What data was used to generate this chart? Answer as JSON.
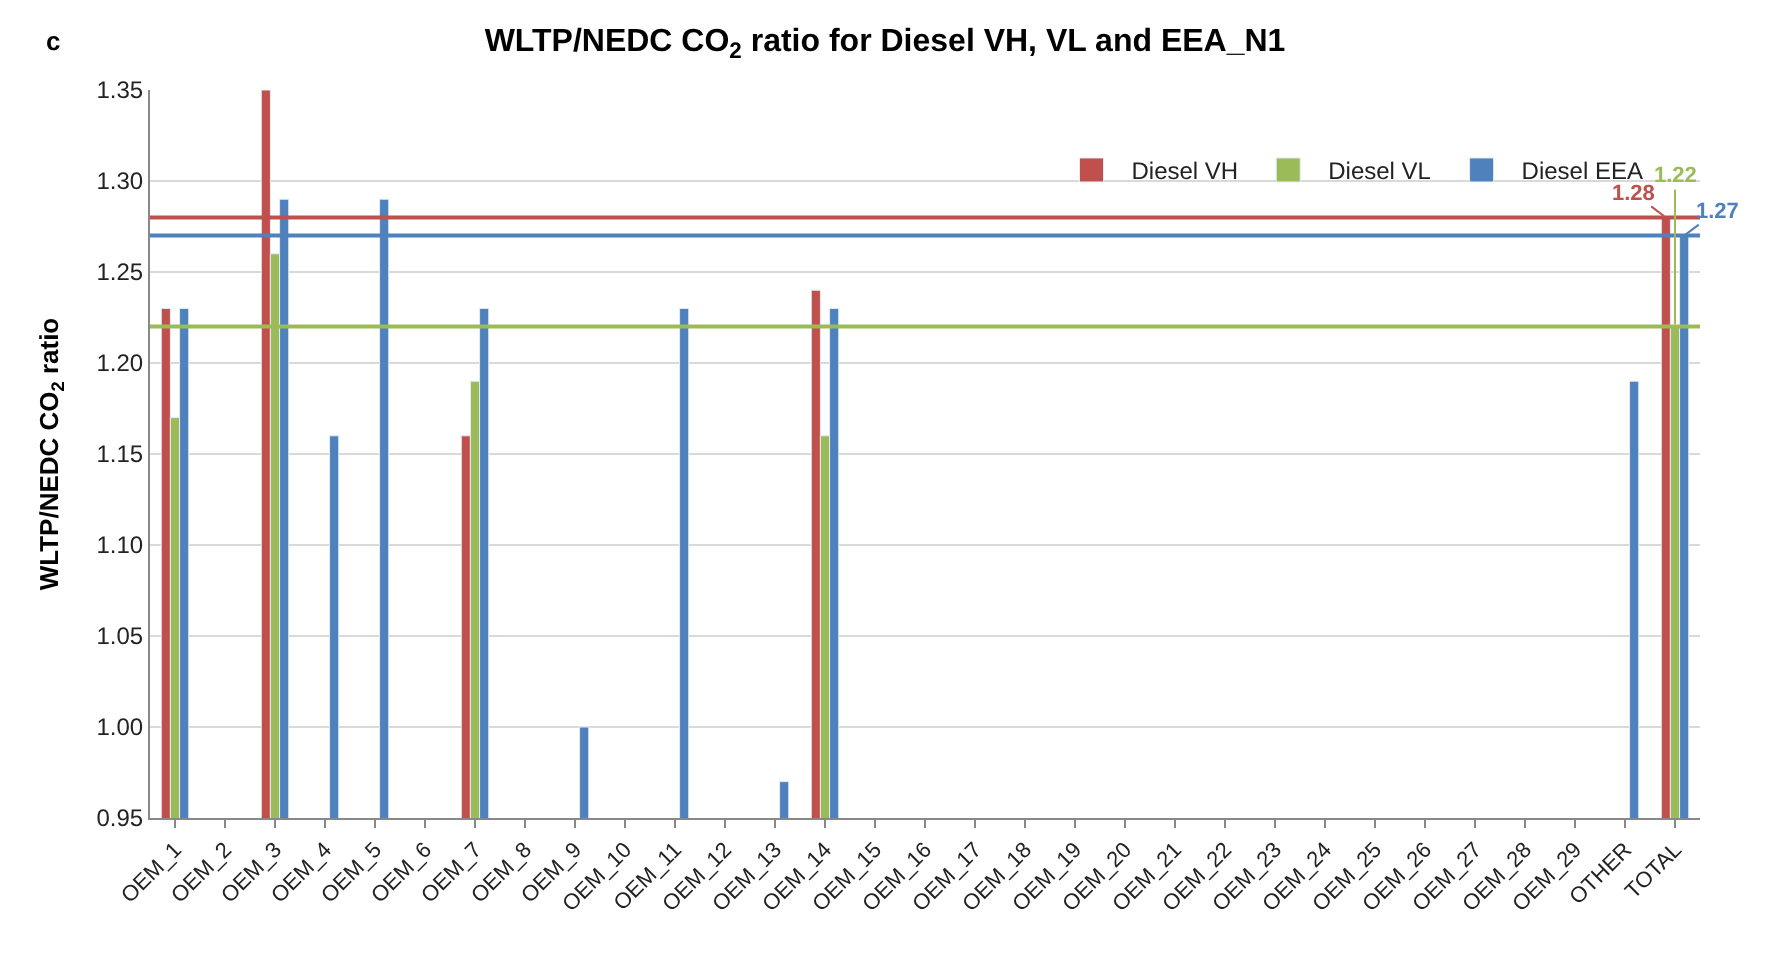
{
  "chart_data": {
    "type": "bar",
    "title": "WLTP/NEDC CO$_{2}$ ratio for Diesel VH, VL and EEA_N1",
    "ylabel": "WLTP/NEDC CO$_{2}$ ratio",
    "annotations": [
      "c"
    ],
    "categories": [
      "OEM_1",
      "OEM_2",
      "OEM_3",
      "OEM_4",
      "OEM_5",
      "OEM_6",
      "OEM_7",
      "OEM_8",
      "OEM_9",
      "OEM_10",
      "OEM_11",
      "OEM_12",
      "OEM_13",
      "OEM_14",
      "OEM_15",
      "OEM_16",
      "OEM_17",
      "OEM_18",
      "OEM_19",
      "OEM_20",
      "OEM_21",
      "OEM_22",
      "OEM_23",
      "OEM_24",
      "OEM_25",
      "OEM_26",
      "OEM_27",
      "OEM_28",
      "OEM_29",
      "OTHER",
      "TOTAL"
    ],
    "series": [
      {
        "name": "Diesel VH",
        "color": "#c0504d",
        "values": [
          1.23,
          null,
          1.35,
          null,
          null,
          null,
          1.16,
          null,
          null,
          null,
          null,
          null,
          null,
          1.24,
          null,
          null,
          null,
          null,
          null,
          null,
          null,
          null,
          null,
          null,
          null,
          null,
          null,
          null,
          null,
          null,
          1.28
        ],
        "value_labels": [
          null,
          null,
          null,
          null,
          null,
          null,
          null,
          null,
          null,
          null,
          null,
          null,
          null,
          null,
          null,
          null,
          null,
          null,
          null,
          null,
          null,
          null,
          null,
          null,
          null,
          null,
          null,
          null,
          null,
          null,
          "1.28"
        ]
      },
      {
        "name": "Diesel VL",
        "color": "#9bbb59",
        "values": [
          1.17,
          null,
          1.26,
          null,
          null,
          null,
          1.19,
          null,
          null,
          null,
          null,
          null,
          null,
          1.16,
          null,
          null,
          null,
          null,
          null,
          null,
          null,
          null,
          null,
          null,
          null,
          null,
          null,
          null,
          null,
          null,
          1.22
        ],
        "value_labels": [
          null,
          null,
          null,
          null,
          null,
          null,
          null,
          null,
          null,
          null,
          null,
          null,
          null,
          null,
          null,
          null,
          null,
          null,
          null,
          null,
          null,
          null,
          null,
          null,
          null,
          null,
          null,
          null,
          null,
          null,
          "1.22"
        ]
      },
      {
        "name": "Diesel EEA",
        "color": "#4f81bd",
        "values": [
          1.23,
          null,
          1.29,
          1.16,
          1.29,
          null,
          1.23,
          null,
          1.0,
          null,
          1.23,
          null,
          0.97,
          1.23,
          null,
          null,
          null,
          null,
          null,
          null,
          null,
          null,
          null,
          null,
          null,
          null,
          null,
          null,
          null,
          1.19,
          1.27
        ],
        "value_labels": [
          null,
          null,
          null,
          null,
          null,
          null,
          null,
          null,
          null,
          null,
          null,
          null,
          null,
          null,
          null,
          null,
          null,
          null,
          null,
          null,
          null,
          null,
          null,
          null,
          null,
          null,
          null,
          null,
          null,
          null,
          "1.27"
        ]
      }
    ],
    "ref_lines": [
      {
        "axis": "y",
        "value": 1.28,
        "color": "#c0504d"
      },
      {
        "axis": "y",
        "value": 1.27,
        "color": "#4f81bd"
      },
      {
        "axis": "y",
        "value": 1.22,
        "color": "#9bbb59"
      }
    ],
    "ylim": [
      0.95,
      1.35
    ],
    "yticks": [
      {
        "value": 0.95,
        "label": "0.95"
      },
      {
        "value": 1.0,
        "label": "1.00"
      },
      {
        "value": 1.05,
        "label": "1.05"
      },
      {
        "value": 1.1,
        "label": "1.10"
      },
      {
        "value": 1.15,
        "label": "1.15"
      },
      {
        "value": 1.2,
        "label": "1.20"
      },
      {
        "value": 1.25,
        "label": "1.25"
      },
      {
        "value": 1.3,
        "label": "1.30"
      },
      {
        "value": 1.35,
        "label": "1.35"
      }
    ],
    "grid": "y",
    "legend": "top right"
  }
}
